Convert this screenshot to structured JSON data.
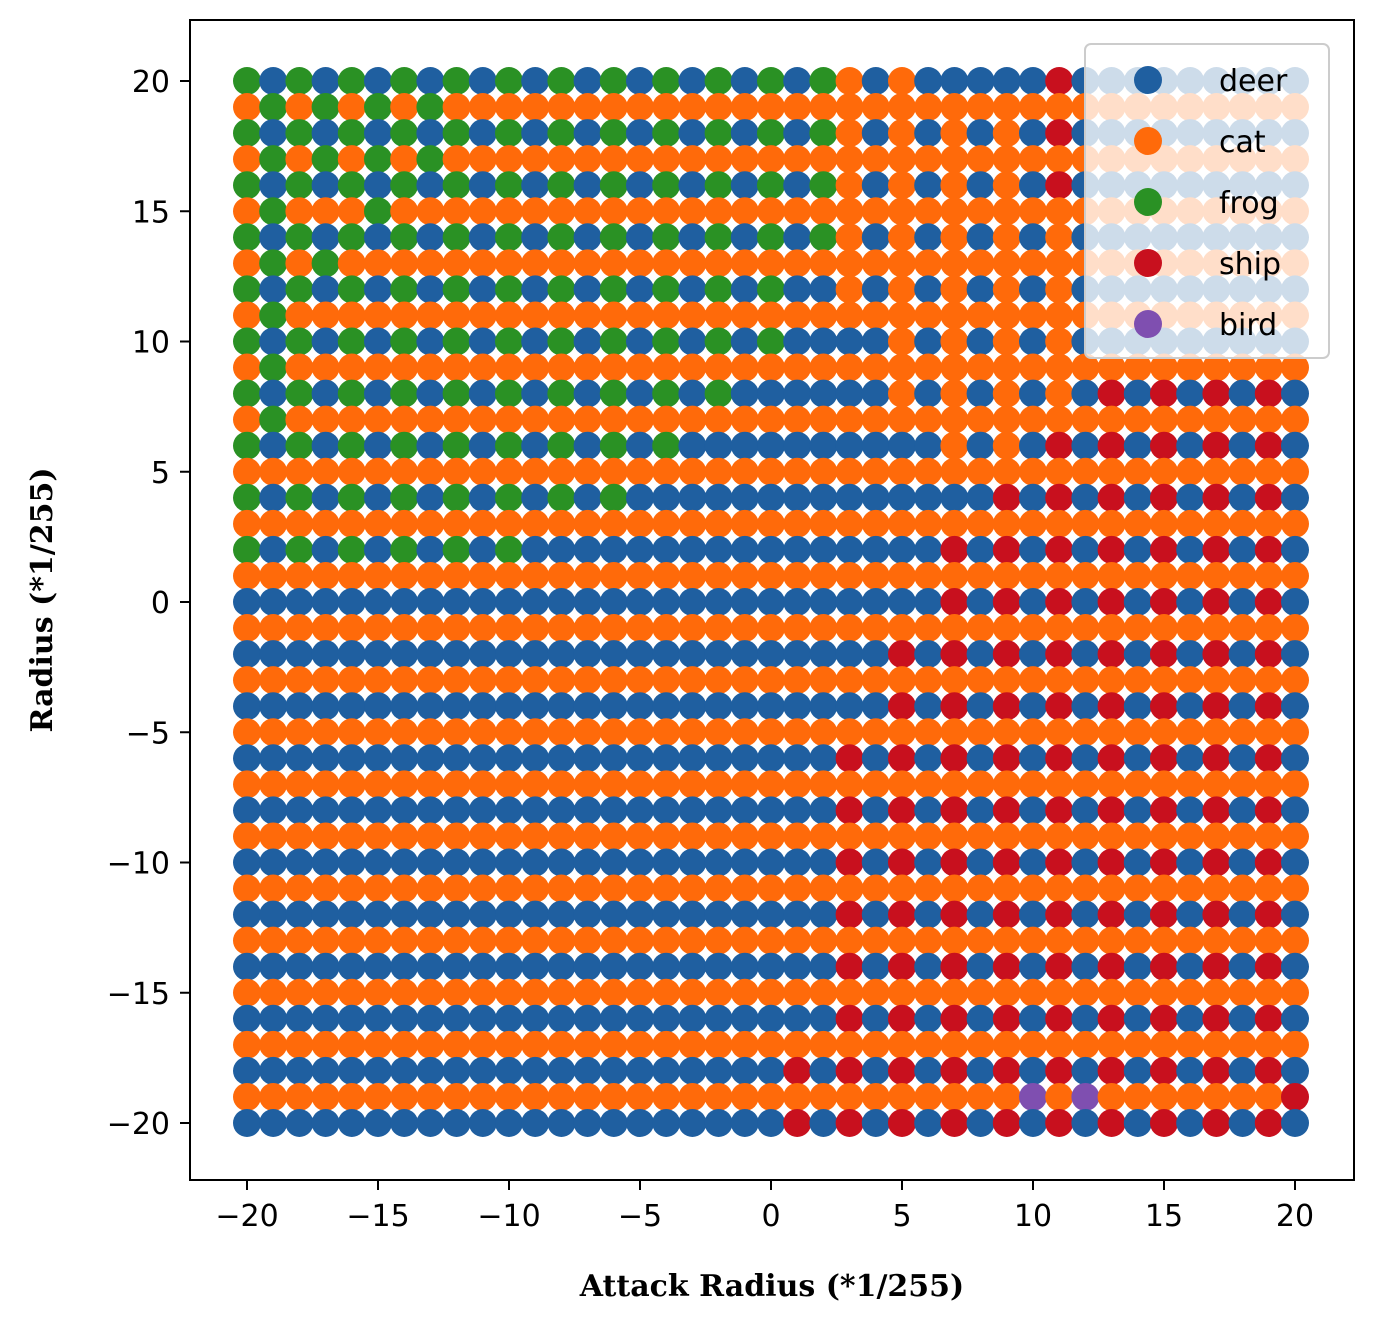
{
  "chart_data": {
    "type": "scatter",
    "title": "",
    "xlabel": "Attack Radius (*1/255)",
    "ylabel": "Radius (*1/255)",
    "xlim": [
      -22.2,
      22.2
    ],
    "ylim": [
      -22.2,
      22.2
    ],
    "x_ticks": [
      -20,
      -15,
      -10,
      -5,
      0,
      5,
      10,
      15,
      20
    ],
    "y_ticks": [
      -20,
      -15,
      -10,
      -5,
      0,
      5,
      10,
      15,
      20
    ],
    "x_tick_labels": [
      "−20",
      "−15",
      "−10",
      "−5",
      "0",
      "5",
      "10",
      "15",
      "20"
    ],
    "y_tick_labels": [
      "−20",
      "−15",
      "−10",
      "−5",
      "0",
      "5",
      "10",
      "15",
      "20"
    ],
    "grid": false,
    "legend_position": "upper right",
    "grid_range": {
      "x": [
        -20,
        20
      ],
      "y": [
        -20,
        20
      ],
      "step": 1
    },
    "default_class_odd_rows": "cat",
    "default_class_even_rows": "deer",
    "series": [
      {
        "name": "deer",
        "color": "#1f5fa0"
      },
      {
        "name": "cat",
        "color": "#ff6a0a"
      },
      {
        "name": "frog",
        "color": "#2a9124"
      },
      {
        "name": "ship",
        "color": "#c8101e"
      },
      {
        "name": "bird",
        "color": "#7f4fb0"
      }
    ],
    "rows": {
      "20": {
        "frog": [
          -20,
          -18,
          -16,
          -14,
          -12,
          -10,
          -8,
          -6,
          -4,
          -2,
          0,
          2
        ],
        "cat": [
          -6,
          -4,
          -2,
          0,
          2,
          3,
          5
        ],
        "ship": [
          11
        ]
      },
      "19": {
        "frog": [
          -19,
          -17,
          -15,
          -13
        ],
        "cat": "default"
      },
      "18": {
        "frog": [
          -20,
          -18,
          -16,
          -14,
          -12,
          -10,
          -8,
          -6,
          -4,
          -2,
          0,
          2
        ],
        "cat": [
          -6,
          -4,
          -2,
          0,
          2,
          3,
          5,
          7,
          9
        ],
        "ship": [
          11
        ]
      },
      "17": {
        "frog": [
          -19,
          -17,
          -15,
          -13
        ],
        "cat": "default"
      },
      "16": {
        "frog": [
          -20,
          -18,
          -16,
          -14,
          -12,
          -10,
          -8,
          -6,
          -4,
          -2,
          0,
          2
        ],
        "cat": [
          3,
          5,
          7,
          9
        ],
        "ship": [
          11
        ]
      },
      "15": {
        "frog": [
          -19,
          -15
        ],
        "cat": "default"
      },
      "14": {
        "frog": [
          -20,
          -18,
          -16,
          -14,
          -12,
          -10,
          -8,
          -6,
          -4,
          -2,
          0,
          2
        ],
        "cat": [
          3,
          5,
          7,
          9,
          11
        ]
      },
      "13": {
        "frog": [
          -19,
          -17
        ],
        "cat": "default"
      },
      "12": {
        "frog": [
          -20,
          -18,
          -16,
          -14,
          -12,
          -10,
          -8,
          -6,
          -4,
          -2,
          0
        ],
        "cat": [
          3,
          5,
          7,
          9,
          11
        ]
      },
      "11": {
        "frog": [
          -19
        ],
        "cat": "default"
      },
      "10": {
        "frog": [
          -20,
          -18,
          -16,
          -14,
          -12,
          -10,
          -8,
          -6,
          -4,
          -2,
          0
        ],
        "cat": [
          5,
          7,
          9,
          11
        ]
      },
      "9": {
        "frog": [
          -19
        ],
        "cat": "default"
      },
      "8": {
        "frog": [
          -20,
          -18,
          -16,
          -14,
          -12,
          -10,
          -8,
          -6,
          -4,
          -2
        ],
        "cat": [
          5,
          7,
          9,
          11
        ],
        "ship": [
          13,
          15,
          17,
          19
        ]
      },
      "7": {
        "frog": [
          -19
        ],
        "cat": "default"
      },
      "6": {
        "frog": [
          -20,
          -18,
          -16,
          -14,
          -12,
          -10,
          -8,
          -6,
          -4
        ],
        "cat": [
          7,
          9
        ],
        "ship": [
          11,
          13,
          15,
          17,
          19
        ]
      },
      "5": {
        "cat": "default"
      },
      "4": {
        "frog": [
          -20,
          -18,
          -16,
          -14,
          -12,
          -10,
          -8,
          -6
        ],
        "ship": [
          9,
          11,
          13,
          15,
          17,
          19
        ]
      },
      "3": {
        "cat": "default"
      },
      "2": {
        "frog": [
          -20,
          -18,
          -16,
          -14,
          -12,
          -10
        ],
        "ship": [
          7,
          9,
          11,
          13,
          15,
          17,
          19
        ]
      },
      "1": {
        "cat": "default"
      },
      "0": {
        "ship": [
          7,
          9,
          11,
          13,
          15,
          17,
          19
        ]
      },
      "-2": {
        "ship": [
          5,
          7,
          9,
          11,
          13,
          15,
          17,
          19
        ]
      },
      "-4": {
        "ship": [
          5,
          7,
          9,
          11,
          13,
          15,
          17,
          19
        ]
      },
      "-6": {
        "ship": [
          3,
          5,
          7,
          9,
          11,
          13,
          15,
          17,
          19
        ]
      },
      "-8": {
        "ship": [
          3,
          5,
          7,
          9,
          11,
          13,
          15,
          17,
          19
        ]
      },
      "-10": {
        "ship": [
          3,
          5,
          7,
          9,
          11,
          13,
          15,
          17,
          19
        ]
      },
      "-12": {
        "ship": [
          3,
          5,
          7,
          9,
          11,
          13,
          15,
          17,
          19
        ]
      },
      "-14": {
        "ship": [
          3,
          5,
          7,
          9,
          11,
          13,
          15,
          17,
          19
        ]
      },
      "-16": {
        "ship": [
          3,
          5,
          7,
          9,
          11,
          13,
          15,
          17,
          19
        ]
      },
      "-18": {
        "ship": [
          1,
          3,
          5,
          7,
          9,
          11,
          13,
          15,
          17,
          19
        ]
      },
      "-19": {
        "bird": [
          10,
          12
        ],
        "ship": [
          20
        ],
        "cat": "default"
      },
      "-20": {
        "ship": [
          1,
          3,
          5,
          7,
          9,
          11,
          13,
          15,
          17,
          19
        ]
      }
    }
  }
}
